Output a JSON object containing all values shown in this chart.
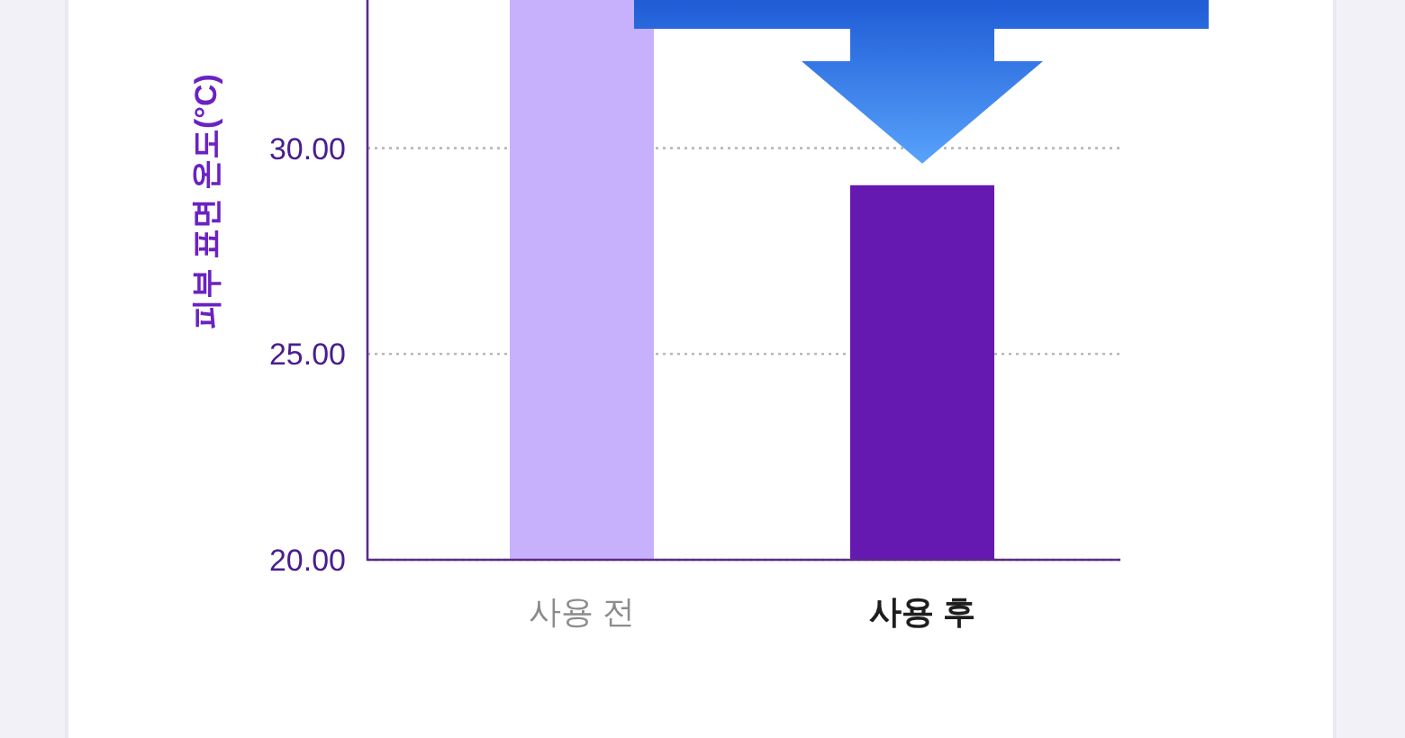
{
  "chart_data": {
    "type": "bar",
    "ylabel": "피부 표면 온도(°C)",
    "categories": [
      "사용 전",
      "사용 후"
    ],
    "colors": [
      "#c8b1fc",
      "#6619b0"
    ],
    "values": [
      33.6,
      29.1
    ],
    "ylim": [
      20,
      33.6
    ],
    "yticks": [
      {
        "value": 20,
        "label": "20.00"
      },
      {
        "value": 25,
        "label": "25.00"
      },
      {
        "value": 30,
        "label": "30.00"
      }
    ],
    "grid": "y"
  }
}
